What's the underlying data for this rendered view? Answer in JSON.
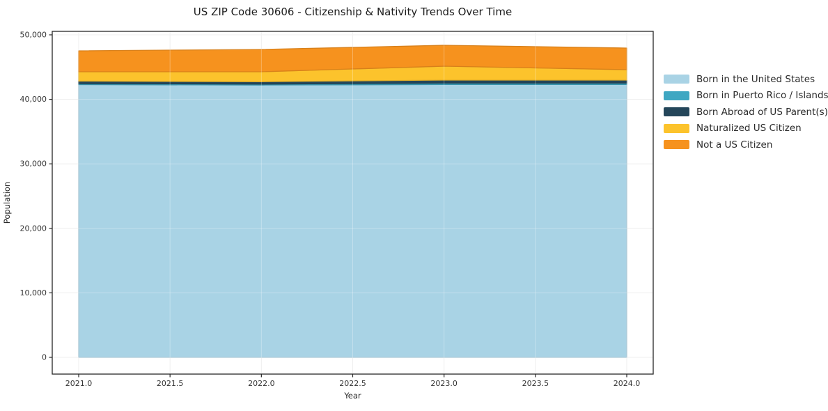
{
  "title": "US ZIP Code 30606 - Citizenship & Nativity Trends Over Time",
  "axes": {
    "xlabel": "Year",
    "ylabel": "Population",
    "x_ticks": [
      "2021.0",
      "2021.5",
      "2022.0",
      "2022.5",
      "2023.0",
      "2023.5",
      "2024.0"
    ],
    "y_ticks": [
      "0",
      "10,000",
      "20,000",
      "30,000",
      "40,000",
      "50,000"
    ]
  },
  "legend": {
    "position": "right-outside",
    "items": [
      {
        "label": "Born in the United States",
        "color": "#A9D3E5"
      },
      {
        "label": "Born in Puerto Rico / Islands",
        "color": "#3FA7C2"
      },
      {
        "label": "Born Abroad of US Parent(s)",
        "color": "#24465A"
      },
      {
        "label": "Naturalized US Citizen",
        "color": "#FCC32C"
      },
      {
        "label": "Not a US Citizen",
        "color": "#F6921E"
      }
    ]
  },
  "chart_data": {
    "type": "area",
    "stacked": true,
    "title": "US ZIP Code 30606 - Citizenship & Nativity Trends Over Time",
    "xlabel": "Year",
    "ylabel": "Population",
    "x": [
      2021,
      2022,
      2023,
      2024
    ],
    "series": [
      {
        "name": "Born in the United States",
        "color": "#A9D3E5",
        "values": [
          42280,
          42220,
          42300,
          42300
        ]
      },
      {
        "name": "Born in Puerto Rico / Islands",
        "color": "#3FA7C2",
        "values": [
          160,
          140,
          220,
          220
        ]
      },
      {
        "name": "Born Abroad of US Parent(s)",
        "color": "#24465A",
        "values": [
          380,
          370,
          460,
          460
        ]
      },
      {
        "name": "Naturalized US Citizen",
        "color": "#FCC32C",
        "values": [
          1460,
          1550,
          2160,
          1620
        ]
      },
      {
        "name": "Not a US Citizen",
        "color": "#F6921E",
        "values": [
          3240,
          3450,
          3240,
          3350
        ]
      }
    ],
    "stack_totals": [
      47520,
      47730,
      48380,
      47950
    ],
    "xlim": [
      2020.85,
      2024.15
    ],
    "ylim": [
      -2420,
      50800
    ],
    "grid": true,
    "legend_position": "right"
  }
}
